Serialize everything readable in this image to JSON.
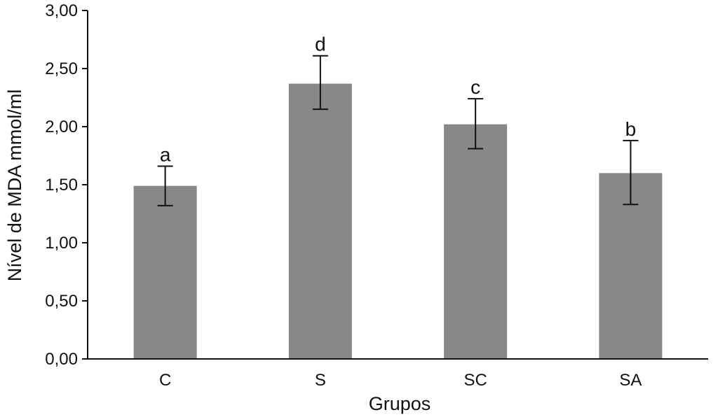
{
  "chart_data": {
    "type": "bar",
    "categories": [
      "C",
      "S",
      "SC",
      "SA"
    ],
    "values": [
      1.49,
      2.37,
      2.02,
      1.6
    ],
    "error_upper": [
      1.66,
      2.61,
      2.24,
      1.88
    ],
    "error_lower": [
      1.32,
      2.15,
      1.81,
      1.33
    ],
    "significance_labels": [
      "a",
      "d",
      "c",
      "b"
    ],
    "xlabel": "Grupos",
    "ylabel": "Nível de MDA mmol/ml",
    "ylim": [
      0,
      3
    ],
    "yticks": [
      "0,00",
      "0,50",
      "1,00",
      "1,50",
      "2,00",
      "2,50",
      "3,00"
    ],
    "bar_color": "#888888",
    "grid": false,
    "legend": "none"
  }
}
